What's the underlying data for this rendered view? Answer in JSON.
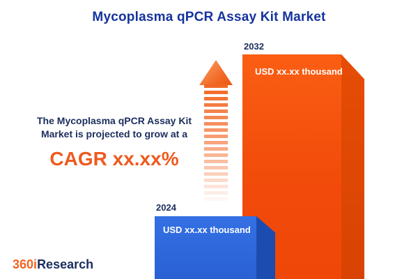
{
  "title": "Mycoplasma qPCR Assay Kit Market",
  "description": {
    "line1": "The Mycoplasma qPCR Assay Kit",
    "line2": "Market is projected to grow at a",
    "cagr": "CAGR xx.xx%"
  },
  "chart_data": {
    "type": "bar",
    "title": "Mycoplasma qPCR Assay Kit Market",
    "unit": "USD thousand",
    "categories": [
      "2024",
      "2032"
    ],
    "values": [
      "xx.xx",
      "xx.xx"
    ],
    "bars": [
      {
        "year": "2024",
        "value_label": "USD xx.xx thousand",
        "color": "#2e6ae0"
      },
      {
        "year": "2032",
        "value_label": "USD xx.xx thousand",
        "color": "#f1490b"
      }
    ],
    "legend": "none",
    "grid": false,
    "note": "values are placeholder text in the source image"
  },
  "logo": {
    "part1": "360",
    "part2": "i",
    "part3": "Research"
  },
  "colors": {
    "title_navy": "#15339e",
    "text_navy": "#1b2d5e",
    "accent_orange": "#f26522",
    "cagr_orange": "#ee5a1e",
    "bar_blue": "#2e6ae0",
    "bar_blue_dark": "#1d4cb0",
    "bar_orange": "#f1490b",
    "bar_orange_dark": "#d84303",
    "background": "#ffffff"
  }
}
